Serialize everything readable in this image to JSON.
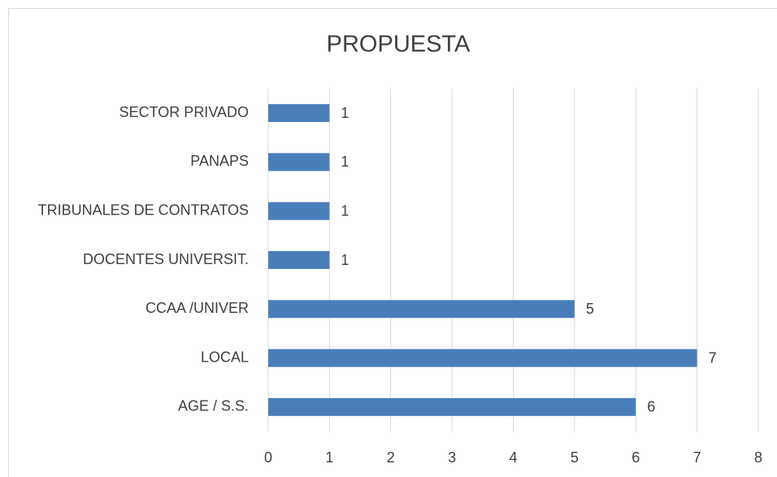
{
  "chart_data": {
    "type": "bar",
    "orientation": "horizontal",
    "title": "PROPUESTA",
    "categories": [
      "SECTOR PRIVADO",
      "PANAPS",
      "TRIBUNALES DE CONTRATOS",
      "DOCENTES UNIVERSIT.",
      "CCAA /UNIVER",
      "LOCAL",
      "AGE / S.S."
    ],
    "values": [
      1,
      1,
      1,
      1,
      5,
      7,
      6
    ],
    "color": "#4a7ebb",
    "xlim": [
      0,
      8
    ],
    "xticks": [
      0,
      1,
      2,
      3,
      4,
      5,
      6,
      7,
      8
    ],
    "grid": true
  }
}
